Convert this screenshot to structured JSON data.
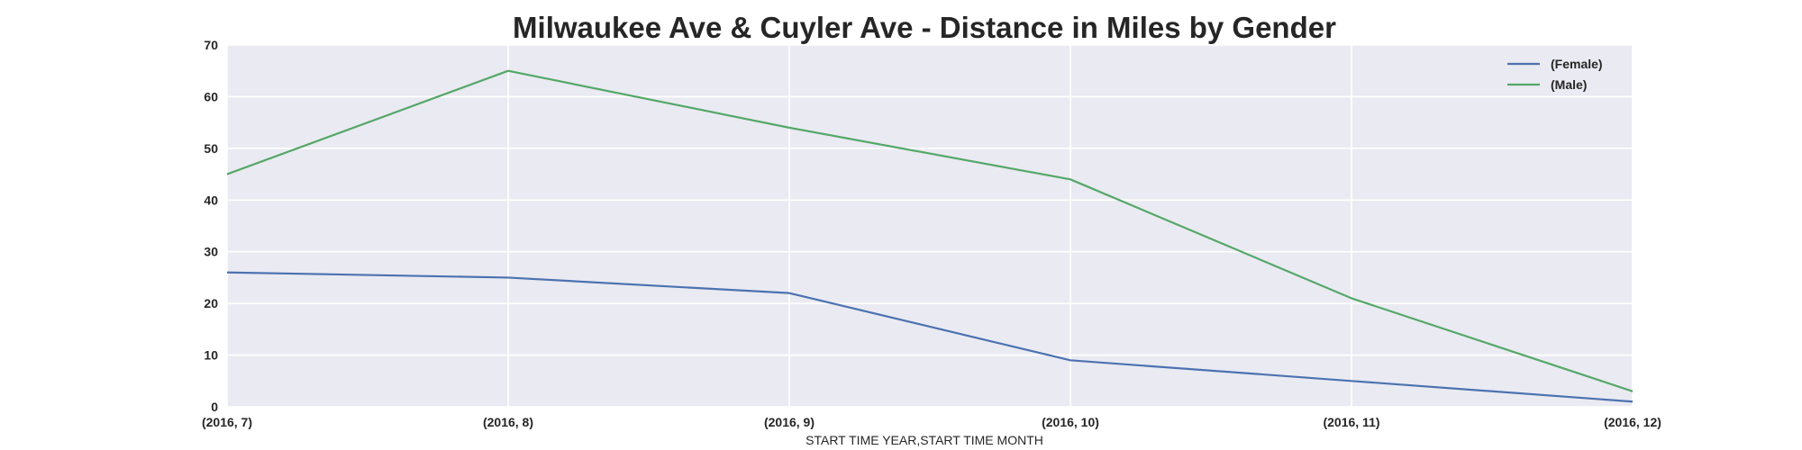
{
  "chart_data": {
    "type": "line",
    "title": "Milwaukee Ave & Cuyler Ave - Distance in Miles by Gender",
    "xlabel": "START TIME YEAR,START TIME MONTH",
    "ylabel": "",
    "categories": [
      "(2016, 7)",
      "(2016, 8)",
      "(2016, 9)",
      "(2016, 10)",
      "(2016, 11)",
      "(2016, 12)"
    ],
    "series": [
      {
        "name": "(Female)",
        "color": "#4c72b0",
        "values": [
          26,
          25,
          22,
          9,
          5,
          1
        ]
      },
      {
        "name": "(Male)",
        "color": "#55a868",
        "values": [
          45,
          65,
          54,
          44,
          21,
          3
        ]
      }
    ],
    "ylim": [
      0,
      70
    ],
    "yticks": [
      "0",
      "10",
      "20",
      "30",
      "40",
      "50",
      "60",
      "70"
    ],
    "grid": true,
    "legend": "top-right",
    "background_color": "#eaeaf2",
    "grid_color": "#ffffff"
  }
}
